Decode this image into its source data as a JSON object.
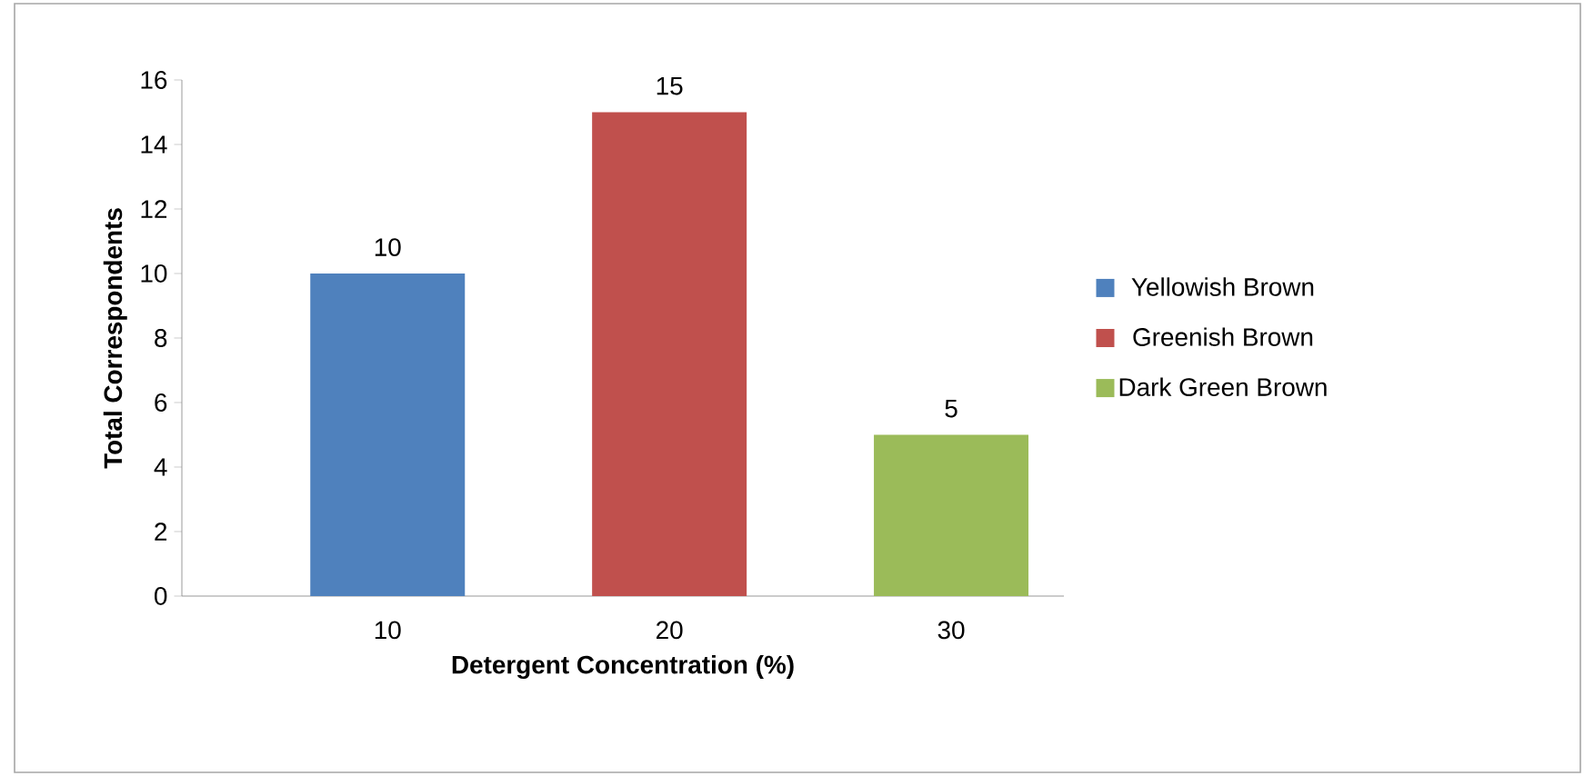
{
  "chart_data": {
    "type": "bar",
    "xlabel": "Detergent Concentration (%)",
    "ylabel": "Total Correspondents",
    "categories": [
      "10",
      "20",
      "30"
    ],
    "series": [
      {
        "name": "Yellowish Brown",
        "color": "#4f81bd",
        "values": [
          10,
          null,
          null
        ]
      },
      {
        "name": "Greenish Brown",
        "color": "#c0504d",
        "values": [
          null,
          15,
          null
        ]
      },
      {
        "name": "Dark Green Brown",
        "color": "#9bbb59",
        "values": [
          null,
          null,
          5
        ]
      }
    ],
    "ylim": [
      0,
      16
    ],
    "yticks": [
      0,
      2,
      4,
      6,
      8,
      10,
      12,
      14,
      16
    ],
    "grid": false,
    "legend": "right",
    "data_labels": true
  }
}
